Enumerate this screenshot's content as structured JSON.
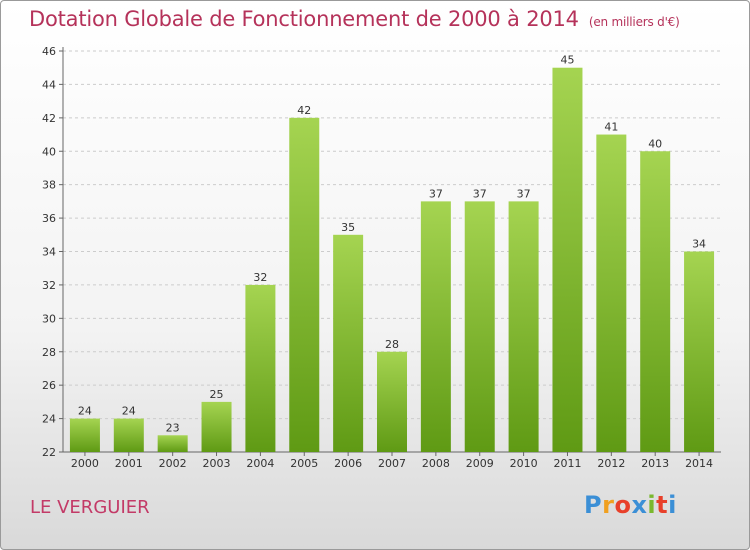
{
  "header": {
    "title": "Dotation Globale de Fonctionnement de 2000 à 2014",
    "unit": "(en milliers d'€)"
  },
  "commune_name": "LE VERGUIER",
  "logo": {
    "letters": [
      "P",
      "r",
      "o",
      "x",
      "i",
      "t",
      "i"
    ],
    "colors": [
      "#3b8fd6",
      "#f0a020",
      "#e8402a",
      "#3b8fd6",
      "#7ab82e",
      "#e8402a",
      "#3b8fd6"
    ]
  },
  "colors": {
    "bar_light": "#a5d451",
    "bar_dark": "#5f9a14",
    "axis": "#666666",
    "grid": "#cccccc"
  },
  "chart_data": {
    "type": "bar",
    "title": "Dotation Globale de Fonctionnement de 2000 à 2014",
    "subtitle": "(en milliers d'€)",
    "xlabel": "",
    "ylabel": "",
    "categories": [
      "2000",
      "2001",
      "2002",
      "2003",
      "2004",
      "2005",
      "2006",
      "2007",
      "2008",
      "2009",
      "2010",
      "2011",
      "2012",
      "2013",
      "2014"
    ],
    "values": [
      24,
      24,
      23,
      25,
      32,
      42,
      35,
      28,
      37,
      37,
      37,
      45,
      41,
      40,
      34
    ],
    "ylim": [
      22,
      46
    ],
    "yticks": [
      22,
      24,
      26,
      28,
      30,
      32,
      34,
      36,
      38,
      40,
      42,
      44,
      46
    ],
    "grid": true,
    "legend": "none"
  }
}
